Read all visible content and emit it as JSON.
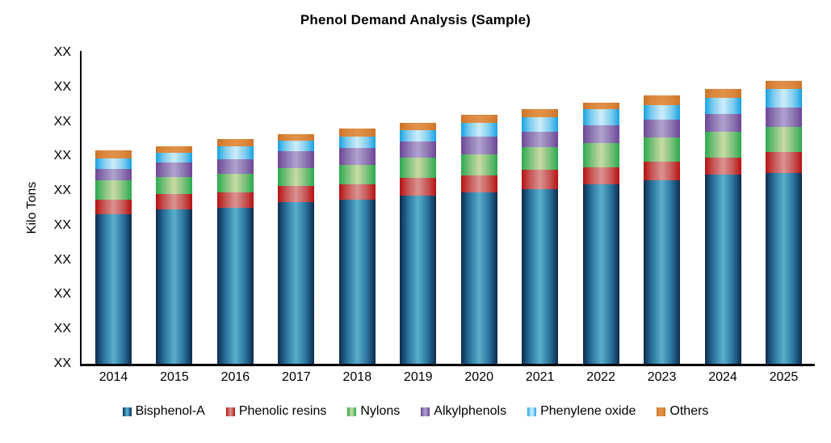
{
  "chart_data": {
    "type": "bar",
    "stacked": true,
    "title": "Phenol Demand Analysis (Sample)",
    "xlabel": "",
    "ylabel": "Kilo Tons",
    "grid": false,
    "legend_position": "bottom",
    "categories": [
      "2014",
      "2015",
      "2016",
      "2017",
      "2018",
      "2019",
      "2020",
      "2021",
      "2022",
      "2023",
      "2024",
      "2025"
    ],
    "y_axis": {
      "tick_labels": [
        "XX",
        "XX",
        "XX",
        "XX",
        "XX",
        "XX",
        "XX",
        "XX",
        "XX",
        "XX"
      ],
      "min": 0,
      "max": 450,
      "units_per_gridline": 50
    },
    "series": [
      {
        "name": "Bisphenol-A",
        "color_edge": "#0E2A4C",
        "color_mid": "#28709B",
        "color_center": "#5AAFCB",
        "values": [
          216,
          223,
          226,
          234,
          237,
          243,
          248,
          253,
          259,
          265,
          273,
          276
        ]
      },
      {
        "name": "Phenolic resins",
        "color_edge": "#B61111",
        "color_mid": "#C65352",
        "color_center": "#DA9391",
        "values": [
          21,
          23,
          22,
          23,
          22,
          26,
          24,
          27,
          25,
          27,
          25,
          30
        ]
      },
      {
        "name": "Nylons",
        "color_edge": "#2BAA4F",
        "color_mid": "#77BF79",
        "color_center": "#C9DBA3",
        "values": [
          28,
          24,
          27,
          26,
          29,
          29,
          31,
          33,
          35,
          35,
          37,
          36
        ]
      },
      {
        "name": "Alkylphenols",
        "color_edge": "#6C4697",
        "color_mid": "#8C74B0",
        "color_center": "#AFA2D0",
        "values": [
          17,
          21,
          21,
          24,
          24,
          23,
          26,
          23,
          26,
          26,
          26,
          28
        ]
      },
      {
        "name": "Phenylene oxide",
        "color_edge": "#18A2E2",
        "color_mid": "#7CCBF0",
        "color_center": "#CDEDFA",
        "values": [
          15,
          14,
          19,
          16,
          16,
          17,
          19,
          20,
          23,
          21,
          24,
          27
        ]
      },
      {
        "name": "Others",
        "color_edge": "#CD7428",
        "color_mid": "#DA873C",
        "color_center": "#E29149",
        "values": [
          12,
          9,
          10,
          9,
          12,
          10,
          12,
          12,
          10,
          14,
          12,
          12
        ]
      }
    ]
  }
}
